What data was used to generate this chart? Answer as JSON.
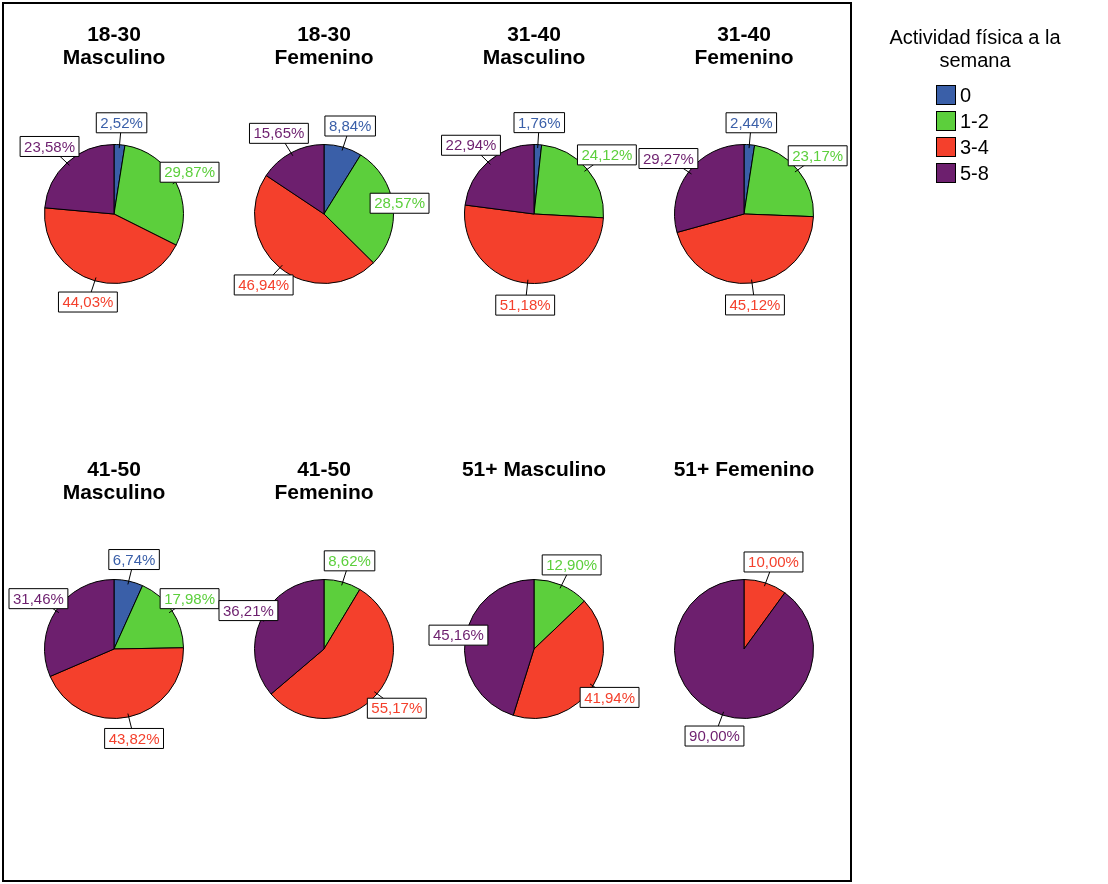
{
  "chart_data": [
    {
      "type": "pie",
      "title": "18-30\nMasculino",
      "legend": "right",
      "legend_title": "Actividad física a la semana",
      "categories": [
        "0",
        "1-2",
        "3-4",
        "5-8"
      ],
      "colors": [
        "#3a5fa8",
        "#5ccf3c",
        "#f4402c",
        "#6d1f6e"
      ],
      "values": [
        2.52,
        29.87,
        44.03,
        23.58
      ],
      "value_labels": [
        "2,52%",
        "29,87%",
        "44,03%",
        "23,58%"
      ]
    },
    {
      "type": "pie",
      "title": "18-30\nFemenino",
      "colors": [
        "#3a5fa8",
        "#5ccf3c",
        "#f4402c",
        "#6d1f6e"
      ],
      "values": [
        8.84,
        28.57,
        46.94,
        15.65
      ],
      "value_labels": [
        "8,84%",
        "28,57%",
        "46,94%",
        "15,65%"
      ]
    },
    {
      "type": "pie",
      "title": "31-40\nMasculino",
      "colors": [
        "#3a5fa8",
        "#5ccf3c",
        "#f4402c",
        "#6d1f6e"
      ],
      "values": [
        1.76,
        24.12,
        51.18,
        22.94
      ],
      "value_labels": [
        "1,76%",
        "24,12%",
        "51,18%",
        "22,94%"
      ]
    },
    {
      "type": "pie",
      "title": "31-40\nFemenino",
      "colors": [
        "#3a5fa8",
        "#5ccf3c",
        "#f4402c",
        "#6d1f6e"
      ],
      "values": [
        2.44,
        23.17,
        45.12,
        29.27
      ],
      "value_labels": [
        "2,44%",
        "23,17%",
        "45,12%",
        "29,27%"
      ]
    },
    {
      "type": "pie",
      "title": "41-50\nMasculino",
      "colors": [
        "#3a5fa8",
        "#5ccf3c",
        "#f4402c",
        "#6d1f6e"
      ],
      "values": [
        6.74,
        17.98,
        43.82,
        31.46
      ],
      "value_labels": [
        "6,74%",
        "17,98%",
        "43,82%",
        "31,46%"
      ]
    },
    {
      "type": "pie",
      "title": "41-50\nFemenino",
      "colors": [
        "#3a5fa8",
        "#5ccf3c",
        "#f4402c",
        "#6d1f6e"
      ],
      "values": [
        null,
        8.62,
        55.17,
        36.21
      ],
      "value_labels": [
        null,
        "8,62%",
        "55,17%",
        "36,21%"
      ]
    },
    {
      "type": "pie",
      "title": "51+ Masculino",
      "colors": [
        "#3a5fa8",
        "#5ccf3c",
        "#f4402c",
        "#6d1f6e"
      ],
      "values": [
        null,
        12.9,
        41.94,
        45.16
      ],
      "value_labels": [
        null,
        "12,90%",
        "41,94%",
        "45,16%"
      ]
    },
    {
      "type": "pie",
      "title": "51+ Femenino",
      "colors": [
        "#3a5fa8",
        "#5ccf3c",
        "#f4402c",
        "#6d1f6e"
      ],
      "values": [
        null,
        null,
        10.0,
        90.0
      ],
      "value_labels": [
        null,
        null,
        "10,00%",
        "90,00%"
      ]
    }
  ]
}
